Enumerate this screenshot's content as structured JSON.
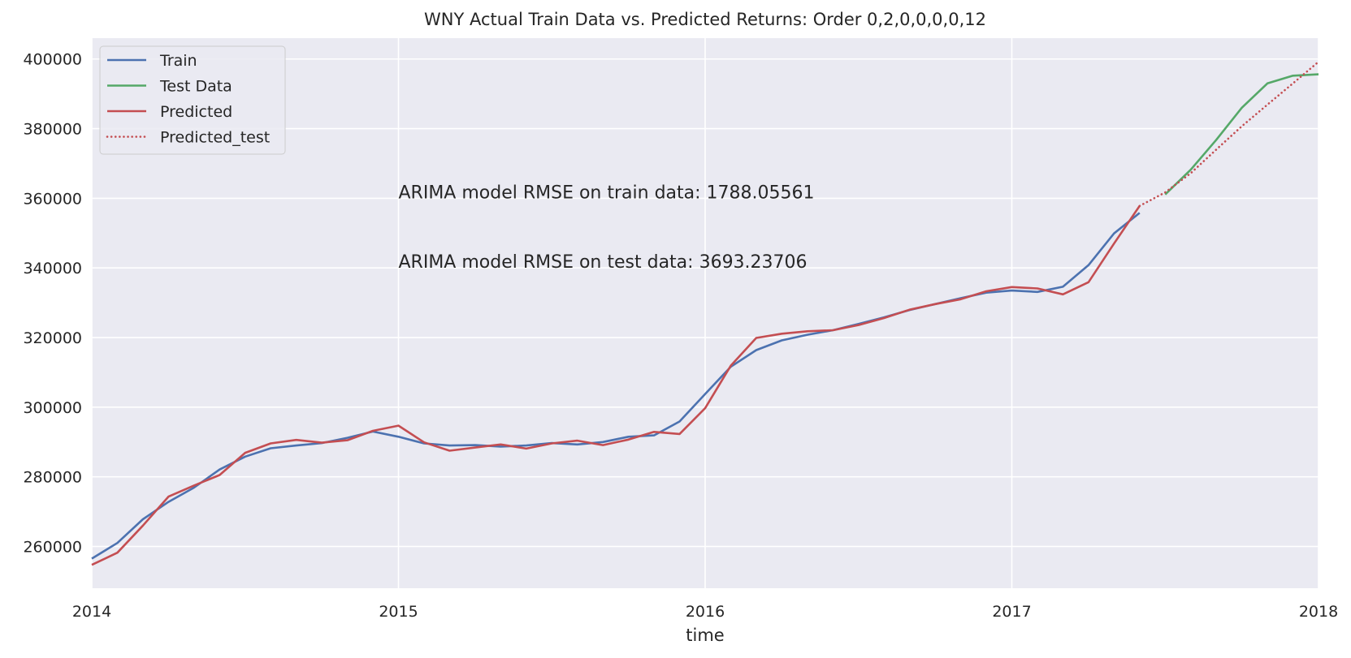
{
  "chart_data": {
    "type": "line",
    "title": "WNY Actual Train Data vs. Predicted Returns: Order 0,2,0,0,0,0,12",
    "xlabel": "time",
    "ylabel": "",
    "x_ticks": [
      "2014",
      "2015",
      "2016",
      "2017",
      "2018"
    ],
    "y_ticks": [
      "260000",
      "280000",
      "300000",
      "320000",
      "340000",
      "360000",
      "380000",
      "400000"
    ],
    "xlim": [
      "2014-01",
      "2018-01"
    ],
    "ylim": [
      248000,
      406000
    ],
    "grid": true,
    "legend_position": "top-left",
    "annotations": [
      {
        "text": "ARIMA model RMSE on train data: 1788.05561",
        "x": "2015-01",
        "y": 360000
      },
      {
        "text": "ARIMA model RMSE on test data: 3693.23706",
        "x": "2015-01",
        "y": 340000
      }
    ],
    "series": [
      {
        "name": "Train",
        "color": "#4c72b0",
        "style": "solid",
        "x": [
          "2014-01",
          "2014-02",
          "2014-03",
          "2014-04",
          "2014-05",
          "2014-06",
          "2014-07",
          "2014-08",
          "2014-09",
          "2014-10",
          "2014-11",
          "2014-12",
          "2015-01",
          "2015-02",
          "2015-03",
          "2015-04",
          "2015-05",
          "2015-06",
          "2015-07",
          "2015-08",
          "2015-09",
          "2015-10",
          "2015-11",
          "2015-12",
          "2016-01",
          "2016-02",
          "2016-03",
          "2016-04",
          "2016-05",
          "2016-06",
          "2016-07",
          "2016-08",
          "2016-09",
          "2016-10",
          "2016-11",
          "2016-12",
          "2017-01",
          "2017-02",
          "2017-03",
          "2017-04",
          "2017-05",
          "2017-06"
        ],
        "values": [
          256500,
          261000,
          267800,
          272800,
          276900,
          282100,
          285800,
          288200,
          289000,
          289700,
          291200,
          293000,
          291500,
          289600,
          289000,
          289100,
          288700,
          289000,
          289700,
          289300,
          290000,
          291500,
          291900,
          295900,
          303800,
          311600,
          316400,
          319200,
          320800,
          322100,
          323900,
          325800,
          327900,
          329600,
          331300,
          332900,
          333500,
          333100,
          334600,
          340800,
          349900,
          355800
        ]
      },
      {
        "name": "Test Data",
        "color": "#55a868",
        "style": "solid",
        "x": [
          "2017-07",
          "2017-08",
          "2017-09",
          "2017-10",
          "2017-11",
          "2017-12",
          "2018-01"
        ],
        "values": [
          361100,
          368200,
          376800,
          386000,
          393000,
          395200,
          395600
        ]
      },
      {
        "name": "Predicted",
        "color": "#c44e52",
        "style": "solid",
        "x": [
          "2014-01",
          "2014-02",
          "2014-03",
          "2014-04",
          "2014-05",
          "2014-06",
          "2014-07",
          "2014-08",
          "2014-09",
          "2014-10",
          "2014-11",
          "2014-12",
          "2015-01",
          "2015-02",
          "2015-03",
          "2015-04",
          "2015-05",
          "2015-06",
          "2015-07",
          "2015-08",
          "2015-09",
          "2015-10",
          "2015-11",
          "2015-12",
          "2016-01",
          "2016-02",
          "2016-03",
          "2016-04",
          "2016-05",
          "2016-06",
          "2016-07",
          "2016-08",
          "2016-09",
          "2016-10",
          "2016-11",
          "2016-12",
          "2017-01",
          "2017-02",
          "2017-03",
          "2017-04",
          "2017-05",
          "2017-06"
        ],
        "values": [
          254700,
          258200,
          266000,
          274300,
          277500,
          280500,
          286900,
          289600,
          290600,
          289800,
          290500,
          293200,
          294700,
          289900,
          287500,
          288400,
          289300,
          288100,
          289600,
          290400,
          289100,
          290700,
          292900,
          292300,
          299700,
          311900,
          319900,
          321100,
          321800,
          322100,
          323600,
          325600,
          328000,
          329600,
          331000,
          333300,
          334500,
          334100,
          332400,
          335900,
          347000,
          357800
        ]
      },
      {
        "name": "Predicted_test",
        "color": "#c44e52",
        "style": "dotted",
        "x": [
          "2017-06",
          "2017-07",
          "2017-08",
          "2017-09",
          "2017-10",
          "2017-11",
          "2017-12",
          "2018-01"
        ],
        "values": [
          357800,
          361700,
          367200,
          374000,
          380700,
          386900,
          393000,
          399200
        ]
      }
    ]
  }
}
